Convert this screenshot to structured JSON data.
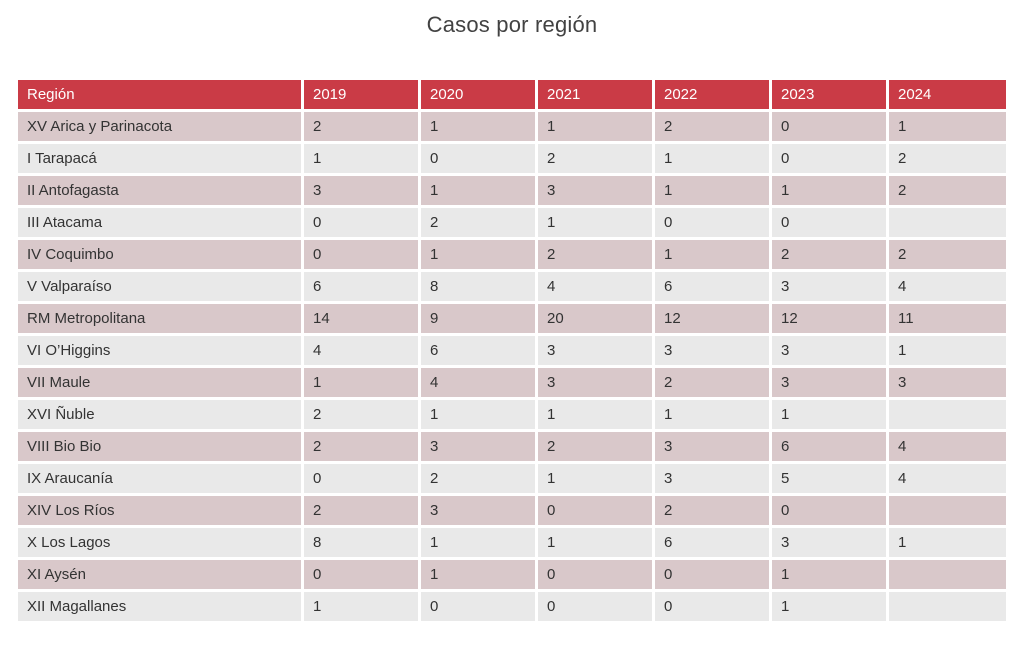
{
  "page": {
    "title": "Casos por región"
  },
  "colors": {
    "header_bg": "#ca3b46",
    "header_text": "#ffffff",
    "row_odd_bg": "#d9c8ca",
    "row_even_bg": "#e9e9e9",
    "cell_text": "#333333",
    "title_text": "#424242"
  },
  "chart_data": {
    "type": "table",
    "title": "Casos por región",
    "columns": [
      "Región",
      "2019",
      "2020",
      "2021",
      "2022",
      "2023",
      "2024"
    ],
    "rows": [
      [
        "XV Arica y Parinacota",
        "2",
        "1",
        "1",
        "2",
        "0",
        "1"
      ],
      [
        "I Tarapacá",
        "1",
        "0",
        "2",
        "1",
        "0",
        "2"
      ],
      [
        "II Antofagasta",
        "3",
        "1",
        "3",
        "1",
        "1",
        "2"
      ],
      [
        "III Atacama",
        "0",
        "2",
        "1",
        "0",
        "0",
        ""
      ],
      [
        "IV Coquimbo",
        "0",
        "1",
        "2",
        "1",
        "2",
        "2"
      ],
      [
        "V Valparaíso",
        "6",
        "8",
        "4",
        "6",
        "3",
        "4"
      ],
      [
        "RM Metropolitana",
        "14",
        "9",
        "20",
        "12",
        "12",
        "11"
      ],
      [
        "VI O’Higgins",
        "4",
        "6",
        "3",
        "3",
        "3",
        "1"
      ],
      [
        "VII Maule",
        "1",
        "4",
        "3",
        "2",
        "3",
        "3"
      ],
      [
        "XVI Ñuble",
        "2",
        "1",
        "1",
        "1",
        "1",
        ""
      ],
      [
        "VIII Bio Bio",
        "2",
        "3",
        "2",
        "3",
        "6",
        "4"
      ],
      [
        "IX Araucanía",
        "0",
        "2",
        "1",
        "3",
        "5",
        "4"
      ],
      [
        "XIV Los Ríos",
        "2",
        "3",
        "0",
        "2",
        "0",
        ""
      ],
      [
        "X Los Lagos",
        "8",
        "1",
        "1",
        "6",
        "3",
        "1"
      ],
      [
        "XI Aysén",
        "0",
        "1",
        "0",
        "0",
        "1",
        ""
      ],
      [
        "XII Magallanes",
        "1",
        "0",
        "0",
        "0",
        "1",
        ""
      ]
    ],
    "layout": {
      "striped": true,
      "header_position": "top",
      "grid": "white-separators"
    }
  }
}
